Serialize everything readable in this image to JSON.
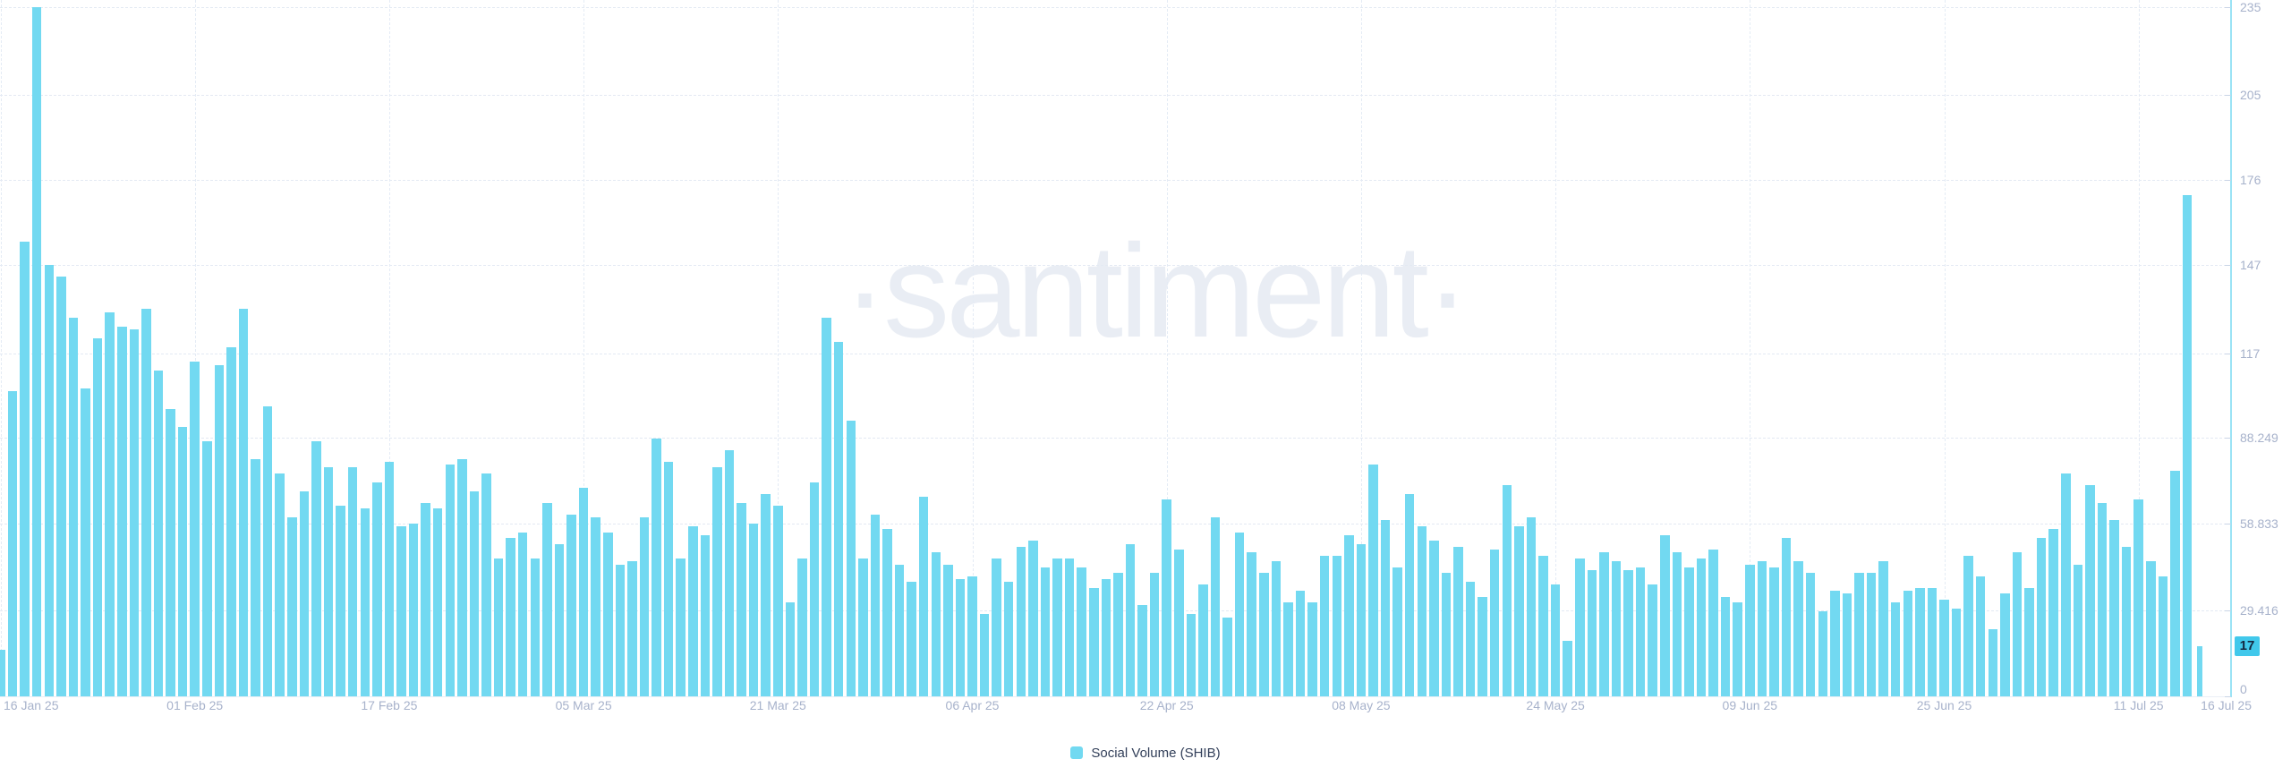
{
  "watermark_text": "·santiment·",
  "legend": {
    "label": "Social Volume (SHIB)",
    "swatch_color": "#72D9F1"
  },
  "colors": {
    "bar": "#72D9F1",
    "badge_background": "#41C8EB",
    "axis_line": "#9BE3F5",
    "grid": "#E3E9F3",
    "tick_label": "#A7B2CB",
    "legend_text": "#323F59",
    "watermark": "#E9EDF4",
    "background": "#FFFFFF"
  },
  "current_value_badge": "17",
  "chart_data": {
    "type": "bar",
    "title": "",
    "series_name": "Social Volume (SHIB)",
    "bar_color": "#72D9F1",
    "legend_position": "bottom-center",
    "grid": "dashed",
    "ylim": [
      0,
      235
    ],
    "x_range": [
      "16 Jan 25",
      "16 Jul 25"
    ],
    "x_tick_interval_days": 16,
    "x_tick_labels": [
      "16 Jan 25",
      "01 Feb 25",
      "17 Feb 25",
      "05 Mar 25",
      "21 Mar 25",
      "06 Apr 25",
      "22 Apr 25",
      "08 May 25",
      "24 May 25",
      "09 Jun 25",
      "25 Jun 25",
      "11 Jul 25",
      "16 Jul 25"
    ],
    "y_ticks": [
      {
        "label": "235",
        "value": 235
      },
      {
        "label": "205",
        "value": 205
      },
      {
        "label": "176",
        "value": 176
      },
      {
        "label": "147",
        "value": 147
      },
      {
        "label": "117",
        "value": 117
      },
      {
        "label": "88.249",
        "value": 88.249
      },
      {
        "label": "58.833",
        "value": 58.833
      },
      {
        "label": "29.416",
        "value": 29.416
      },
      {
        "label": "0",
        "value": 0
      }
    ],
    "latest_value": 17,
    "values_note": "daily values from 16 Jan 2025 through 16 Jul 2025",
    "values": [
      16,
      104,
      155,
      235,
      147,
      143,
      129,
      105,
      122,
      131,
      126,
      125,
      132,
      111,
      98,
      92,
      114,
      87,
      113,
      119,
      132,
      81,
      99,
      76,
      61,
      70,
      87,
      78,
      65,
      78,
      64,
      73,
      80,
      58,
      59,
      66,
      64,
      79,
      81,
      70,
      76,
      47,
      54,
      56,
      47,
      66,
      52,
      62,
      71,
      61,
      56,
      45,
      46,
      61,
      88,
      80,
      47,
      58,
      55,
      78,
      84,
      66,
      59,
      69,
      65,
      32,
      47,
      73,
      129,
      121,
      94,
      47,
      62,
      57,
      45,
      39,
      68,
      49,
      45,
      40,
      41,
      28,
      47,
      39,
      51,
      53,
      44,
      47,
      47,
      44,
      37,
      40,
      42,
      52,
      31,
      42,
      67,
      50,
      28,
      38,
      61,
      27,
      56,
      49,
      42,
      46,
      32,
      36,
      32,
      48,
      48,
      55,
      52,
      79,
      60,
      44,
      69,
      58,
      53,
      42,
      51,
      39,
      34,
      50,
      72,
      58,
      61,
      48,
      38,
      19,
      47,
      43,
      49,
      46,
      43,
      44,
      38,
      55,
      49,
      44,
      47,
      50,
      34,
      32,
      45,
      46,
      44,
      54,
      46,
      42,
      29,
      36,
      35,
      42,
      42,
      46,
      32,
      36,
      37,
      37,
      33,
      30,
      48,
      41,
      23,
      35,
      49,
      37,
      54,
      57,
      76,
      45,
      72,
      66,
      60,
      51,
      67,
      46,
      41,
      77,
      171,
      17
    ]
  }
}
